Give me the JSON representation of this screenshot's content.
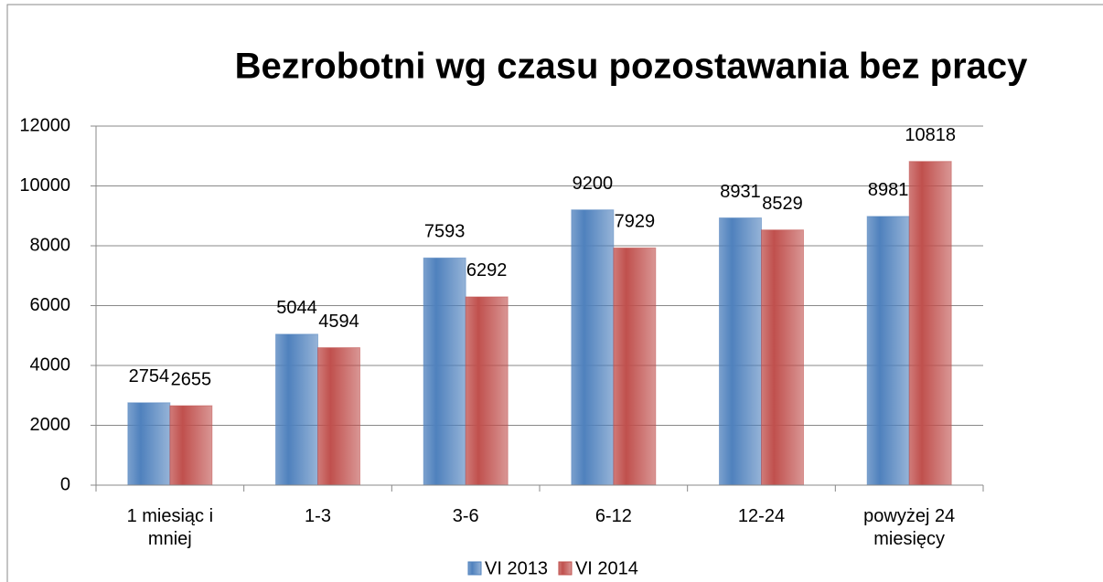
{
  "chart_data": {
    "type": "bar",
    "title": "Bezrobotni wg czasu pozostawania bez pracy",
    "categories": [
      "1 miesiąc i mniej",
      "1-3",
      "3-6",
      "6-12",
      "12-24",
      "powyżej 24 miesięcy"
    ],
    "series": [
      {
        "name": "VI 2013",
        "color": "#4f81bd",
        "values": [
          2754,
          5044,
          7593,
          9200,
          8931,
          8981
        ]
      },
      {
        "name": "VI 2014",
        "color": "#c0504d",
        "values": [
          2655,
          4594,
          6292,
          7929,
          8529,
          10818
        ]
      }
    ],
    "ylim": [
      0,
      12000
    ],
    "yticks": [
      0,
      2000,
      4000,
      6000,
      8000,
      10000,
      12000
    ],
    "grid": true,
    "legend": "bottom"
  }
}
